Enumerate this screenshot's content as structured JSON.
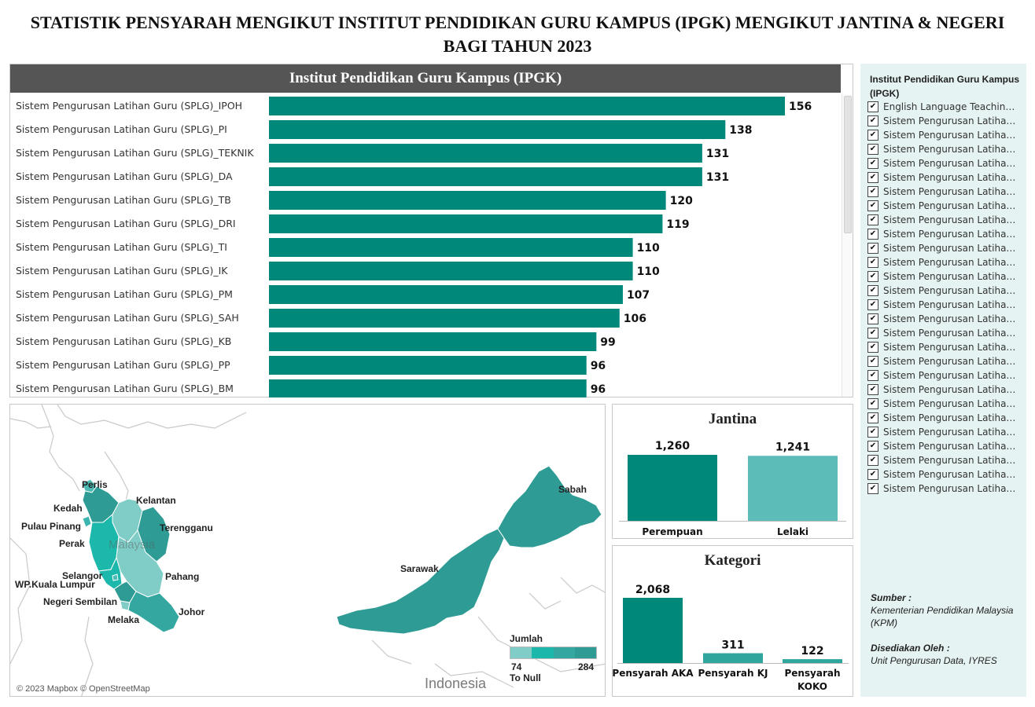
{
  "title": {
    "line1": "STATISTIK PENSYARAH MENGIKUT INSTITUT PENDIDIKAN GURU KAMPUS (IPGK) MENGIKUT JANTINA & NEGERI",
    "line2": "BAGI TAHUN 2023"
  },
  "colors": {
    "teal": "#00897b",
    "teal_light": "#5cbcb8",
    "header_bg": "#555555",
    "sidebar_bg": "#e5f3f2"
  },
  "chart_data": [
    {
      "type": "bar",
      "orientation": "horizontal",
      "title": "Institut Pendidikan Guru Kampus (IPGK)",
      "categories": [
        "Sistem Pengurusan Latihan Guru (SPLG)_IPOH",
        "Sistem Pengurusan Latihan Guru (SPLG)_PI",
        "Sistem Pengurusan Latihan Guru (SPLG)_TEKNIK",
        "Sistem Pengurusan Latihan Guru (SPLG)_DA",
        "Sistem Pengurusan Latihan Guru (SPLG)_TB",
        "Sistem Pengurusan Latihan Guru (SPLG)_DRI",
        "Sistem Pengurusan Latihan Guru (SPLG)_TI",
        "Sistem Pengurusan Latihan Guru (SPLG)_IK",
        "Sistem Pengurusan Latihan Guru (SPLG)_PM",
        "Sistem Pengurusan Latihan Guru (SPLG)_SAH",
        "Sistem Pengurusan Latihan Guru (SPLG)_KB",
        "Sistem Pengurusan Latihan Guru (SPLG)_PP",
        "Sistem Pengurusan Latihan Guru (SPLG)_BM"
      ],
      "values": [
        156,
        138,
        131,
        131,
        120,
        119,
        110,
        110,
        107,
        106,
        99,
        96,
        96
      ],
      "xlim": [
        0,
        170
      ],
      "grid": false
    },
    {
      "type": "bar",
      "title": "Jantina",
      "categories": [
        "Perempuan",
        "Lelaki"
      ],
      "values": [
        1260,
        1241
      ],
      "value_labels": [
        "1,260",
        "1,241"
      ],
      "colors": [
        "#00897b",
        "#5cbcb8"
      ]
    },
    {
      "type": "bar",
      "title": "Kategori",
      "categories": [
        "Pensyarah AKA",
        "Pensyarah KJ",
        "Pensyarah KOKO"
      ],
      "values": [
        2068,
        311,
        122
      ],
      "value_labels": [
        "2,068",
        "311",
        "122"
      ]
    }
  ],
  "map": {
    "labels": [
      "Perlis",
      "Kedah",
      "Kelantan",
      "Pulau Pinang",
      "Terengganu",
      "Perak",
      "Selangor",
      "WP.Kuala Lumpur",
      "Pahang",
      "Negeri Sembilan",
      "Melaka",
      "Johor",
      "Sarawak",
      "Sabah"
    ],
    "country_label": "Indonesia",
    "background_label": "Malaysia",
    "attribution": "© 2023 Mapbox © OpenStreetMap",
    "legend": {
      "title": "Jumlah",
      "min": "74",
      "max": "284",
      "null_label": "To Null"
    }
  },
  "filter": {
    "title": "Institut Pendidikan Guru Kampus (IPGK)",
    "items": [
      "English Language Teaching Centre",
      "Sistem Pengurusan Latihan Guru",
      "Sistem Pengurusan Latihan Guru",
      "Sistem Pengurusan Latihan Guru",
      "Sistem Pengurusan Latihan Guru",
      "Sistem Pengurusan Latihan Guru",
      "Sistem Pengurusan Latihan Guru",
      "Sistem Pengurusan Latihan Guru",
      "Sistem Pengurusan Latihan Guru",
      "Sistem Pengurusan Latihan Guru",
      "Sistem Pengurusan Latihan Guru",
      "Sistem Pengurusan Latihan Guru",
      "Sistem Pengurusan Latihan Guru",
      "Sistem Pengurusan Latihan Guru",
      "Sistem Pengurusan Latihan Guru",
      "Sistem Pengurusan Latihan Guru",
      "Sistem Pengurusan Latihan Guru",
      "Sistem Pengurusan Latihan Guru",
      "Sistem Pengurusan Latihan Guru",
      "Sistem Pengurusan Latihan Guru",
      "Sistem Pengurusan Latihan Guru",
      "Sistem Pengurusan Latihan Guru",
      "Sistem Pengurusan Latihan Guru",
      "Sistem Pengurusan Latihan Guru",
      "Sistem Pengurusan Latihan Guru",
      "Sistem Pengurusan Latihan Guru",
      "Sistem Pengurusan Latihan Guru",
      "Sistem Pengurusan Latihan Guru"
    ]
  },
  "source": {
    "label": "Sumber :",
    "text": "Kementerian Pendidikan Malaysia (KPM)",
    "prepared_label": "Disediakan Oleh :",
    "prepared_text": "Unit Pengurusan Data, IYRES"
  }
}
